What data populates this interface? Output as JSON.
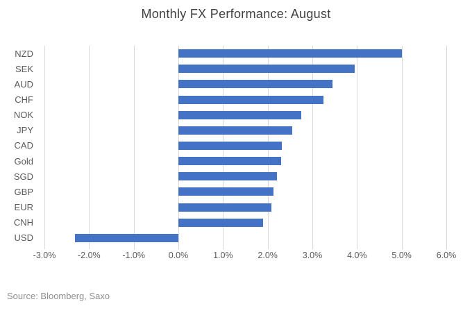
{
  "chart_data": {
    "type": "bar",
    "orientation": "horizontal",
    "title": "Monthly FX Performance: August",
    "categories": [
      "NZD",
      "SEK",
      "AUD",
      "CHF",
      "NOK",
      "JPY",
      "CAD",
      "Gold",
      "SGD",
      "GBP",
      "EUR",
      "CNH",
      "USD"
    ],
    "values": [
      5.0,
      3.95,
      3.45,
      3.25,
      2.75,
      2.55,
      2.32,
      2.3,
      2.2,
      2.13,
      2.08,
      1.9,
      -2.32
    ],
    "value_unit": "%",
    "xlabel": "",
    "ylabel": "",
    "xlim": [
      -3,
      6
    ],
    "x_ticks": [
      -3,
      -2,
      -1,
      0,
      1,
      2,
      3,
      4,
      5,
      6
    ],
    "x_tick_labels": [
      "-3.0%",
      "-2.0%",
      "-1.0%",
      "0.0%",
      "1.0%",
      "2.0%",
      "3.0%",
      "4.0%",
      "5.0%",
      "6.0%"
    ],
    "grid": true,
    "legend": false,
    "colors": {
      "bar": "#4472C4",
      "gridline": "#D9D9D9",
      "title_text": "#404040",
      "axis_text": "#595959",
      "source_text": "#8F8F8F",
      "background": "#FFFFFF"
    },
    "source": "Source: Bloomberg, Saxo"
  }
}
